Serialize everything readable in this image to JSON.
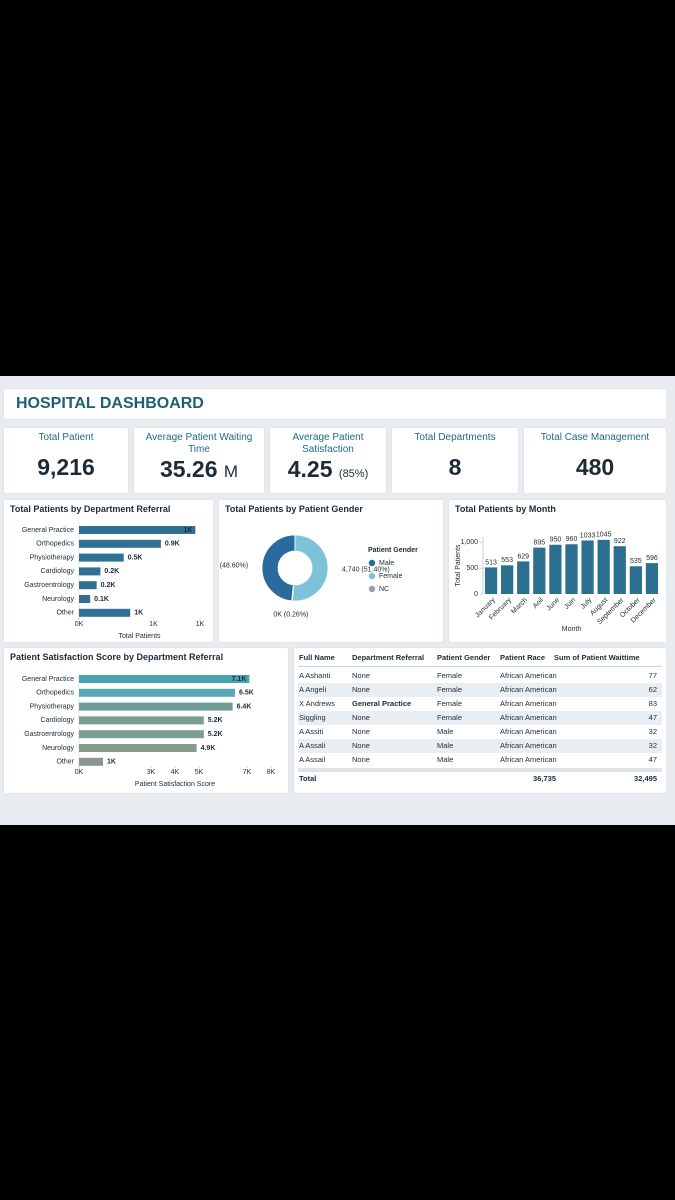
{
  "header": {
    "title": "HOSPITAL DASHBOARD"
  },
  "kpis": [
    {
      "label": "Total Patient",
      "value": "9,216"
    },
    {
      "label": "Average Patient Waiting Time",
      "value": "35.26",
      "unit": "M"
    },
    {
      "label": "Average Patient Satisfaction",
      "value": "4.25",
      "note": "(85%)"
    },
    {
      "label": "Total Departments",
      "value": "8"
    },
    {
      "label": "Total Case Management",
      "value": "480"
    }
  ],
  "chart_data": [
    {
      "type": "hbar",
      "title": "Total Patients by Department Referral",
      "categories": [
        "General Practice",
        "Orthopedics",
        "Physiotherapy",
        "Cardiology",
        "Gastroentrology",
        "Neurology",
        "Other"
      ],
      "values": [
        1250,
        880,
        480,
        230,
        190,
        120,
        550
      ],
      "value_labels": [
        "1K",
        "0.9K",
        "0.5K",
        "0.2K",
        "0.2K",
        "0.1K",
        "1K"
      ],
      "color": "#2f7193",
      "xlabel": "Total Patients",
      "xlim": [
        0,
        1300
      ],
      "xticks": [
        {
          "value": 0,
          "label": "0K"
        },
        {
          "value": 800,
          "label": "1K"
        },
        {
          "value": 1300,
          "label": "1K"
        }
      ]
    },
    {
      "type": "pie",
      "title": "Total Patients by Patient Gender",
      "legend_title": "Patient Gender",
      "categories": [
        "Male",
        "Female",
        "NC"
      ],
      "values": [
        48.6,
        51.4,
        0.26
      ],
      "value_labels": [
        "(48.60%)",
        "4,740 (51.40%)",
        "0K (0.26%)"
      ],
      "colors": [
        "#2b6a9e",
        "#7cc3da",
        "#9aa0a6"
      ],
      "donut": true
    },
    {
      "type": "bar",
      "title": "Total Patients by Month",
      "categories": [
        "January",
        "February",
        "March",
        "Aoil",
        "June",
        "Juin",
        "July",
        "August",
        "September",
        "October",
        "December"
      ],
      "values": [
        513,
        553,
        629,
        895,
        950,
        960,
        1033,
        1045,
        922,
        535,
        596
      ],
      "color": "#2d6f8f",
      "ylabel": "Total Patients",
      "xlabel": "Month",
      "ylim": [
        0,
        1100
      ],
      "yticks": [
        0,
        500,
        {
          "value": 1000,
          "label": "1,000"
        }
      ]
    },
    {
      "type": "hbar",
      "title": "Patient Satisfaction Score by Department Referral",
      "categories": [
        "General Practice",
        "Orthopedics",
        "Physiotherapy",
        "Cardiology",
        "Gastroentrology",
        "Neurology",
        "Other"
      ],
      "values": [
        7100,
        6500,
        6400,
        5200,
        5200,
        4900,
        1000
      ],
      "value_labels": [
        "7.1K",
        "6.5K",
        "6.4K",
        "5.2K",
        "5.2K",
        "4.9K",
        "1K"
      ],
      "colors": [
        "#4aa3b3",
        "#58a9b4",
        "#6e9e96",
        "#7b9c90",
        "#7b9c90",
        "#889a8e",
        "#889a8e"
      ],
      "xlabel": "Patient Satisfaction Score",
      "xlim": [
        0,
        8000
      ],
      "xticks": [
        {
          "value": 0,
          "label": "0K"
        },
        {
          "value": 3000,
          "label": "3K"
        },
        {
          "value": 4000,
          "label": "4K"
        },
        {
          "value": 5000,
          "label": "5K"
        },
        {
          "value": 7000,
          "label": "7K"
        },
        {
          "value": 8000,
          "label": "8K"
        }
      ]
    }
  ],
  "table": {
    "columns": [
      "Full Name",
      "Department Referral",
      "Patient Gender",
      "Patient Race",
      "Sum of Patient Waittime"
    ],
    "rows": [
      [
        "A Ashanti",
        "None",
        "Female",
        "African American",
        "77"
      ],
      [
        "A Angeli",
        "None",
        "Female",
        "African American",
        "62"
      ],
      [
        "X Andrews",
        "General Practice",
        "Female",
        "African American",
        "83"
      ],
      [
        "Siggling",
        "None",
        "Female",
        "African American",
        "47"
      ],
      [
        "A Assiti",
        "None",
        "Male",
        "African American",
        "32"
      ],
      [
        "A Assali",
        "None",
        "Male",
        "African American",
        "32"
      ],
      [
        "A Assail",
        "None",
        "Male",
        "African American",
        "47"
      ]
    ],
    "total": {
      "label": "Total",
      "values": [
        "36,735",
        "32,495"
      ]
    }
  }
}
